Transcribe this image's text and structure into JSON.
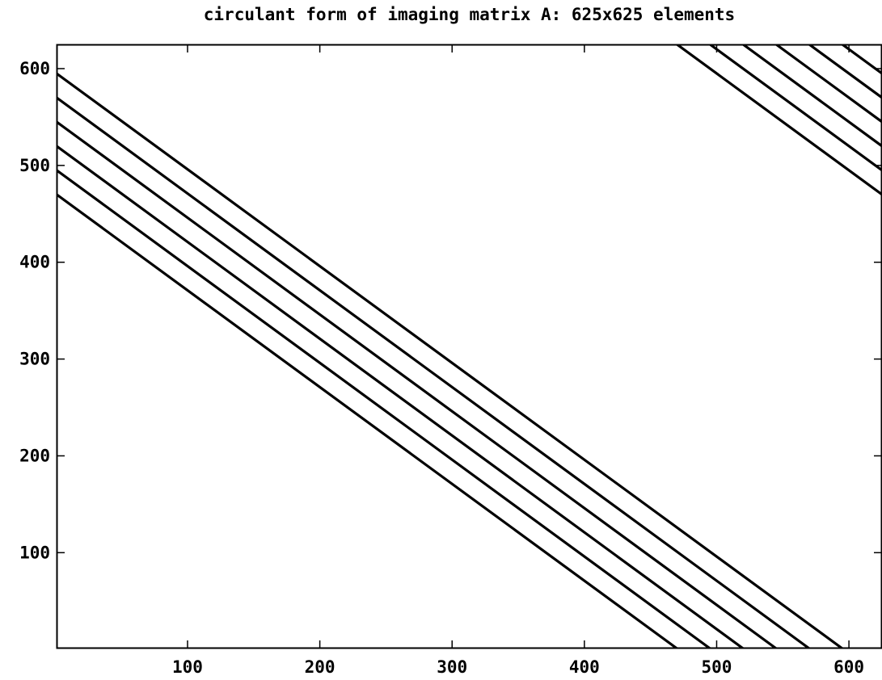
{
  "chart_data": {
    "type": "line",
    "title": "circulant form of imaging matrix A: 625x625 elements",
    "xlabel": "",
    "ylabel": "",
    "xlim": [
      1,
      625
    ],
    "ylim": [
      1,
      625
    ],
    "grid": false,
    "line_color": "#000000",
    "x_ticks": [
      100,
      200,
      300,
      400,
      500,
      600
    ],
    "x_tick_labels": [
      "100",
      "200",
      "300",
      "400",
      "500",
      "600"
    ],
    "y_ticks": [
      100,
      200,
      300,
      400,
      500,
      600
    ],
    "y_tick_labels": [
      "100",
      "200",
      "300",
      "400",
      "500",
      "600"
    ],
    "series": [
      {
        "x": [
          1,
          470
        ],
        "y": [
          470,
          1
        ]
      },
      {
        "x": [
          1,
          495
        ],
        "y": [
          495,
          1
        ]
      },
      {
        "x": [
          1,
          520
        ],
        "y": [
          520,
          1
        ]
      },
      {
        "x": [
          1,
          545
        ],
        "y": [
          545,
          1
        ]
      },
      {
        "x": [
          1,
          570
        ],
        "y": [
          570,
          1
        ]
      },
      {
        "x": [
          1,
          595
        ],
        "y": [
          595,
          1
        ]
      },
      {
        "x": [
          470,
          625
        ],
        "y": [
          625,
          470
        ]
      },
      {
        "x": [
          495,
          625
        ],
        "y": [
          625,
          495
        ]
      },
      {
        "x": [
          520,
          625
        ],
        "y": [
          625,
          520
        ]
      },
      {
        "x": [
          545,
          625
        ],
        "y": [
          625,
          545
        ]
      },
      {
        "x": [
          570,
          625
        ],
        "y": [
          625,
          570
        ]
      },
      {
        "x": [
          595,
          625
        ],
        "y": [
          625,
          595
        ]
      }
    ]
  }
}
